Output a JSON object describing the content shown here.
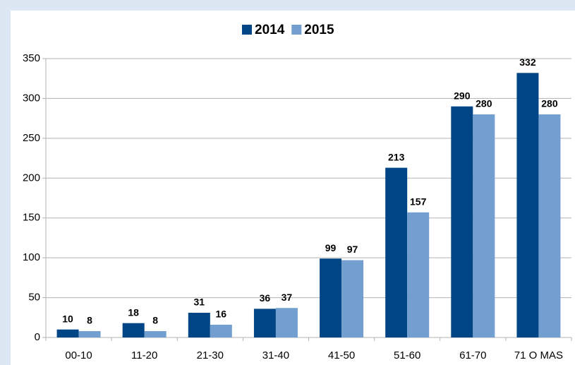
{
  "chart_data": {
    "type": "bar",
    "categories": [
      "00-10",
      "11-20",
      "21-30",
      "31-40",
      "41-50",
      "51-60",
      "61-70",
      "71 O MAS"
    ],
    "series": [
      {
        "name": "2014",
        "color": "#004586",
        "values": [
          10,
          18,
          31,
          36,
          99,
          213,
          290,
          332
        ]
      },
      {
        "name": "2015",
        "color": "#729fcf",
        "values": [
          8,
          8,
          16,
          37,
          97,
          157,
          280,
          280
        ]
      }
    ],
    "ylim": [
      0,
      350
    ],
    "yticks": [
      0,
      50,
      100,
      150,
      200,
      250,
      300,
      350
    ],
    "grid": true,
    "legend": "top"
  }
}
